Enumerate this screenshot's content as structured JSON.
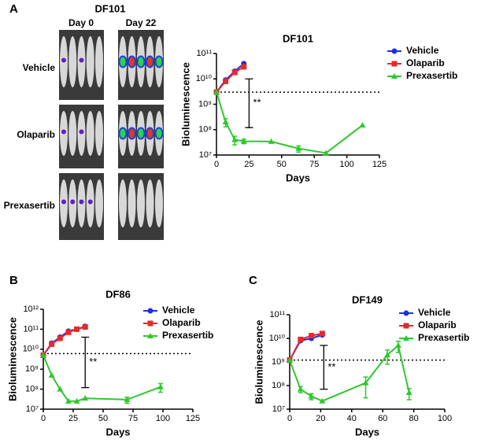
{
  "figure": {
    "panel_labels": [
      "A",
      "B",
      "C"
    ],
    "imaging": {
      "title": "DF101",
      "columns": [
        "Day 0",
        "Day 22"
      ],
      "rows": [
        "Vehicle",
        "Olaparib",
        "Prexasertib"
      ]
    }
  },
  "chart_data": [
    {
      "type": "line",
      "title": "DF101",
      "xlabel": "Days",
      "ylabel": "Bioluminescence",
      "log_y": true,
      "xlim": [
        0,
        125
      ],
      "xticks": [
        0,
        25,
        50,
        75,
        100,
        125
      ],
      "ylim": [
        10000000,
        100000000000
      ],
      "yticks": [
        {
          "value": 10000000,
          "label": "10⁷"
        },
        {
          "value": 100000000,
          "label": "10⁸"
        },
        {
          "value": 1000000000,
          "label": "10⁹"
        },
        {
          "value": 10000000000,
          "label": "10¹⁰"
        },
        {
          "value": 100000000000,
          "label": "10¹¹"
        }
      ],
      "threshold": 3000000000,
      "bracket": {
        "x": 25,
        "y": [
          10000000000,
          120000000
        ],
        "label": "**"
      },
      "legend": "right",
      "series": [
        {
          "name": "Vehicle",
          "color": "#1f2fe0",
          "marker": "circle",
          "x": [
            0,
            7,
            14,
            21
          ],
          "values": [
            3000000000,
            9000000000,
            20000000000,
            40000000000
          ]
        },
        {
          "name": "Olaparib",
          "color": "#e8282b",
          "marker": "square",
          "x": [
            0,
            7,
            14,
            21
          ],
          "values": [
            3000000000,
            8000000000,
            18000000000,
            30000000000
          ]
        },
        {
          "name": "Prexasertib",
          "color": "#2ec82e",
          "marker": "triangle",
          "x": [
            0,
            7,
            14,
            21,
            42,
            63,
            84,
            112
          ],
          "values": [
            3000000000,
            200000000,
            40000000,
            35000000,
            34000000,
            18000000,
            12000000,
            150000000
          ],
          "errors": [
            null,
            70000000,
            15000000,
            7000000,
            null,
            5000000,
            null,
            null
          ]
        }
      ]
    },
    {
      "type": "line",
      "title": "DF86",
      "xlabel": "Days",
      "ylabel": "Bioluminescence",
      "log_y": true,
      "xlim": [
        0,
        125
      ],
      "xticks": [
        0,
        25,
        50,
        75,
        100,
        125
      ],
      "ylim": [
        10000000,
        1000000000000
      ],
      "yticks": [
        {
          "value": 10000000,
          "label": "10⁷"
        },
        {
          "value": 100000000,
          "label": "10⁸"
        },
        {
          "value": 1000000000,
          "label": "10⁹"
        },
        {
          "value": 10000000000,
          "label": "10¹⁰"
        },
        {
          "value": 100000000000,
          "label": "10¹¹"
        },
        {
          "value": 1000000000000,
          "label": "10¹²"
        }
      ],
      "threshold": 6000000000,
      "bracket": {
        "x": 35,
        "y": [
          40000000000,
          120000000
        ],
        "label": "**"
      },
      "legend": "right",
      "series": [
        {
          "name": "Vehicle",
          "color": "#1f2fe0",
          "marker": "circle",
          "x": [
            0,
            7,
            14,
            21,
            28,
            35
          ],
          "values": [
            5000000000,
            20000000000,
            40000000000,
            80000000000,
            100000000000,
            140000000000
          ]
        },
        {
          "name": "Olaparib",
          "color": "#e8282b",
          "marker": "square",
          "x": [
            0,
            7,
            14,
            21,
            28,
            35
          ],
          "values": [
            5000000000,
            18000000000,
            35000000000,
            70000000000,
            100000000000,
            130000000000
          ]
        },
        {
          "name": "Prexasertib",
          "color": "#2ec82e",
          "marker": "triangle",
          "x": [
            0,
            7,
            14,
            21,
            28,
            35,
            70,
            98
          ],
          "values": [
            5000000000,
            500000000,
            100000000,
            25000000,
            25000000,
            35000000,
            30000000,
            130000000
          ],
          "errors": [
            null,
            null,
            null,
            null,
            null,
            null,
            10000000,
            60000000
          ]
        }
      ]
    },
    {
      "type": "line",
      "title": "DF149",
      "xlabel": "Days",
      "ylabel": "Bioluminescence",
      "log_y": true,
      "xlim": [
        0,
        100
      ],
      "xticks": [
        0,
        20,
        40,
        60,
        80,
        100
      ],
      "ylim": [
        10000000,
        100000000000
      ],
      "yticks": [
        {
          "value": 10000000,
          "label": "10⁷"
        },
        {
          "value": 100000000,
          "label": "10⁸"
        },
        {
          "value": 1000000000,
          "label": "10⁹"
        },
        {
          "value": 10000000000,
          "label": "10¹⁰"
        },
        {
          "value": 100000000000,
          "label": "10¹¹"
        }
      ],
      "threshold": 1200000000,
      "bracket": {
        "x": 22,
        "y": [
          5000000000,
          70000000
        ],
        "label": "**"
      },
      "legend": "right",
      "series": [
        {
          "name": "Vehicle",
          "color": "#1f2fe0",
          "marker": "circle",
          "x": [
            0,
            7,
            14,
            21
          ],
          "values": [
            1200000000,
            8000000000,
            10000000000,
            14000000000
          ]
        },
        {
          "name": "Olaparib",
          "color": "#e8282b",
          "marker": "square",
          "x": [
            0,
            7,
            14,
            21
          ],
          "values": [
            1200000000,
            9000000000,
            13000000000,
            16000000000
          ]
        },
        {
          "name": "Prexasertib",
          "color": "#2ec82e",
          "marker": "triangle",
          "x": [
            0,
            7,
            14,
            21,
            49,
            63,
            70,
            77
          ],
          "values": [
            1200000000,
            70000000,
            35000000,
            22000000,
            130000000,
            2000000000,
            5000000000,
            50000000
          ],
          "errors": [
            null,
            20000000,
            10000000,
            null,
            100000000,
            1200000000,
            2500000000,
            25000000
          ]
        }
      ]
    }
  ]
}
